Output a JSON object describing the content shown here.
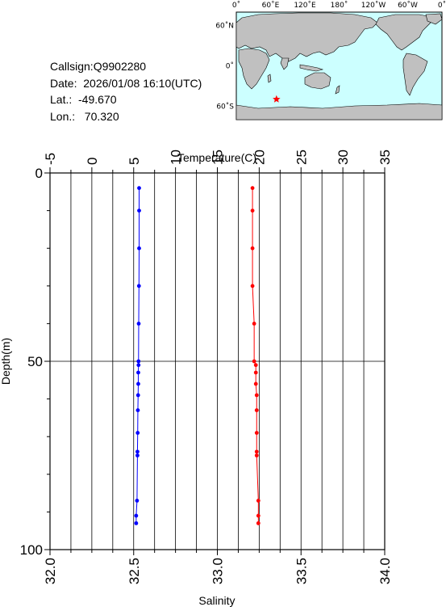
{
  "info": {
    "callsign": "Callsign:Q9902280",
    "date": "Date:  2026/01/08 16:10(UTC)",
    "lat": "Lat.:  -49.670",
    "lon": "Lon.:   70.320"
  },
  "map": {
    "top_labels": [
      "0˚",
      "60˚E",
      "120˚E",
      "180˚",
      "120˚W",
      "60˚W",
      "0˚"
    ],
    "left_labels": [
      "60˚N",
      "0˚",
      "60˚S"
    ],
    "ocean_color": "#ccffff",
    "land_color": "#c0c0c0",
    "marker": {
      "lat": -49.67,
      "lon": 70.32,
      "color": "#ff0000",
      "shape": "star"
    }
  },
  "chart_data": {
    "type": "line",
    "title": "",
    "y_axis": {
      "label": "Depth(m)",
      "range": [
        0,
        100
      ],
      "ticks": [
        "0",
        "50",
        "100"
      ],
      "inverted": true
    },
    "x_axis_top": {
      "label": "Temperature(C)",
      "range": [
        -5,
        35
      ],
      "ticks": [
        "-5",
        "0",
        "5",
        "10",
        "15",
        "20",
        "25",
        "30",
        "35"
      ]
    },
    "x_axis_bottom": {
      "label": "Salinity",
      "range": [
        32.0,
        34.0
      ],
      "ticks": [
        "32.0",
        "32.5",
        "33.0",
        "33.5",
        "34.0"
      ]
    },
    "grid": true,
    "series": [
      {
        "axis": "top",
        "color": "#0000ff",
        "depth": [
          4,
          10,
          20,
          30,
          40,
          50,
          51,
          53,
          56,
          59,
          63,
          69,
          74,
          75,
          87,
          91,
          93
        ],
        "values": [
          5.65,
          5.65,
          5.65,
          5.63,
          5.6,
          5.58,
          5.58,
          5.55,
          5.55,
          5.53,
          5.5,
          5.48,
          5.45,
          5.45,
          5.4,
          5.3,
          5.3
        ]
      },
      {
        "axis": "bottom",
        "color": "#ff0000",
        "depth": [
          4,
          10,
          20,
          30,
          40,
          50,
          51,
          53,
          56,
          59,
          63,
          69,
          74,
          75,
          87,
          91,
          93
        ],
        "values": [
          33.21,
          33.21,
          33.21,
          33.21,
          33.22,
          33.22,
          33.23,
          33.23,
          33.23,
          33.235,
          33.235,
          33.235,
          33.235,
          33.235,
          33.245,
          33.245,
          33.245
        ]
      }
    ]
  }
}
